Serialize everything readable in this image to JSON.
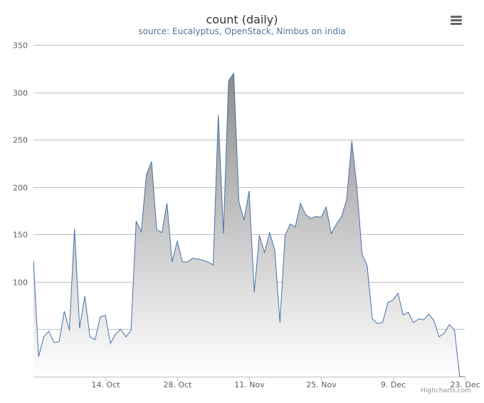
{
  "header": {
    "title": "count (daily)",
    "subtitle": "source: Eucalyptus, OpenStack, Nimbus on india"
  },
  "credits": "Highcharts.com",
  "chart_data": {
    "type": "area",
    "title": "count (daily)",
    "subtitle": "source: Eucalyptus, OpenStack, Nimbus on india",
    "xlabel": "",
    "ylabel": "",
    "ylim": [
      0,
      350
    ],
    "xlim": [
      "2013-09-30",
      "2013-12-23"
    ],
    "y_ticks": [
      0,
      50,
      100,
      150,
      200,
      250,
      300,
      350
    ],
    "y_tick_labels": [
      "",
      "",
      "100",
      "150",
      "200",
      "250",
      "300",
      "350"
    ],
    "x_ticks": [
      {
        "date": "2013-10-14",
        "label": "14. Oct"
      },
      {
        "date": "2013-10-28",
        "label": "28. Oct"
      },
      {
        "date": "2013-11-11",
        "label": "11. Nov"
      },
      {
        "date": "2013-11-25",
        "label": "25. Nov"
      },
      {
        "date": "2013-12-09",
        "label": "9. Dec"
      },
      {
        "date": "2013-12-23",
        "label": "23. Dec"
      }
    ],
    "grid": true,
    "legend": "none",
    "colors": {
      "line": "#4572a7",
      "fill_top": "#8c8c8c",
      "fill_bottom": "#ffffff",
      "grid": "#c0c0c0"
    },
    "series": [
      {
        "x": [
          "2013-09-30",
          "2013-10-01",
          "2013-10-02",
          "2013-10-03",
          "2013-10-04",
          "2013-10-05",
          "2013-10-06",
          "2013-10-07",
          "2013-10-08",
          "2013-10-09",
          "2013-10-10",
          "2013-10-11",
          "2013-10-12",
          "2013-10-13",
          "2013-10-14",
          "2013-10-15",
          "2013-10-16",
          "2013-10-17",
          "2013-10-18",
          "2013-10-19",
          "2013-10-20",
          "2013-10-21",
          "2013-10-22",
          "2013-10-23",
          "2013-10-24",
          "2013-10-25",
          "2013-10-26",
          "2013-10-27",
          "2013-10-28",
          "2013-10-29",
          "2013-10-30",
          "2013-10-31",
          "2013-11-01",
          "2013-11-02",
          "2013-11-03",
          "2013-11-04",
          "2013-11-05",
          "2013-11-06",
          "2013-11-07",
          "2013-11-08",
          "2013-11-09",
          "2013-11-10",
          "2013-11-11",
          "2013-11-12",
          "2013-11-13",
          "2013-11-14",
          "2013-11-15",
          "2013-11-16",
          "2013-11-17",
          "2013-11-18",
          "2013-11-19",
          "2013-11-20",
          "2013-11-21",
          "2013-11-22",
          "2013-11-23",
          "2013-11-24",
          "2013-11-25",
          "2013-11-26",
          "2013-11-27",
          "2013-11-28",
          "2013-11-29",
          "2013-11-30",
          "2013-12-01",
          "2013-12-02",
          "2013-12-03",
          "2013-12-04",
          "2013-12-05",
          "2013-12-06",
          "2013-12-07",
          "2013-12-08",
          "2013-12-09",
          "2013-12-10",
          "2013-12-11",
          "2013-12-12",
          "2013-12-13",
          "2013-12-14",
          "2013-12-15",
          "2013-12-16",
          "2013-12-17",
          "2013-12-18",
          "2013-12-19",
          "2013-12-20",
          "2013-12-21",
          "2013-12-22",
          "2013-12-23"
        ],
        "values": [
          122,
          21,
          42,
          48,
          36,
          37,
          69,
          49,
          156,
          51,
          85,
          42,
          39,
          63,
          65,
          35,
          45,
          50,
          42,
          49,
          164,
          153,
          213,
          227,
          155,
          152,
          183,
          121,
          143,
          121,
          121,
          125,
          124,
          123,
          121,
          118,
          276,
          151,
          312,
          320,
          185,
          165,
          196,
          89,
          149,
          131,
          152,
          133,
          57,
          149,
          161,
          158,
          183,
          171,
          167,
          169,
          168,
          179,
          151,
          161,
          169,
          187,
          249,
          199,
          129,
          117,
          61,
          56,
          57,
          78,
          81,
          88,
          65,
          68,
          57,
          61,
          60,
          66,
          59,
          42,
          46,
          55,
          49,
          0,
          0
        ]
      }
    ]
  }
}
